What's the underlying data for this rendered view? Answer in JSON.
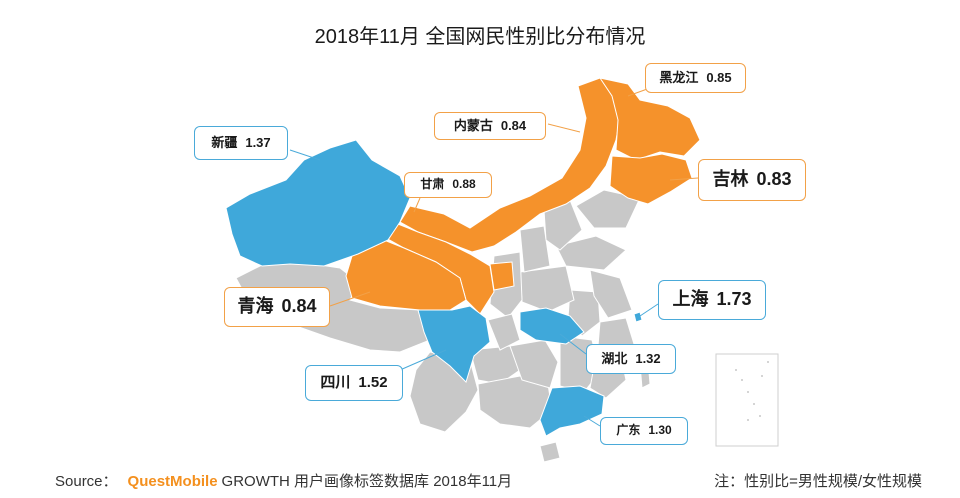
{
  "title": "2018年11月 全国网民性别比分布情况",
  "colors": {
    "high": "#3fa8da",
    "low": "#f5922b",
    "other": "#c8c8c8",
    "border": "#ffffff"
  },
  "callouts": {
    "heilongjiang": {
      "name": "黑龙江",
      "value": "0.85"
    },
    "neimenggu": {
      "name": "内蒙古",
      "value": "0.84"
    },
    "jilin": {
      "name": "吉林",
      "value": "0.83"
    },
    "xinjiang": {
      "name": "新疆",
      "value": "1.37"
    },
    "gansu": {
      "name": "甘肃",
      "value": "0.88"
    },
    "qinghai": {
      "name": "青海",
      "value": "0.84"
    },
    "shanghai": {
      "name": "上海",
      "value": "1.73"
    },
    "hubei": {
      "name": "湖北",
      "value": "1.32"
    },
    "sichuan": {
      "name": "四川",
      "value": "1.52"
    },
    "guangdong": {
      "name": "广东",
      "value": "1.30"
    }
  },
  "footer": {
    "source_label": "Source：",
    "brand": "QuestMobile",
    "source_text": "GROWTH 用户画像标签数据库 2018年11月",
    "note": "注：性别比=男性规模/女性规模"
  }
}
